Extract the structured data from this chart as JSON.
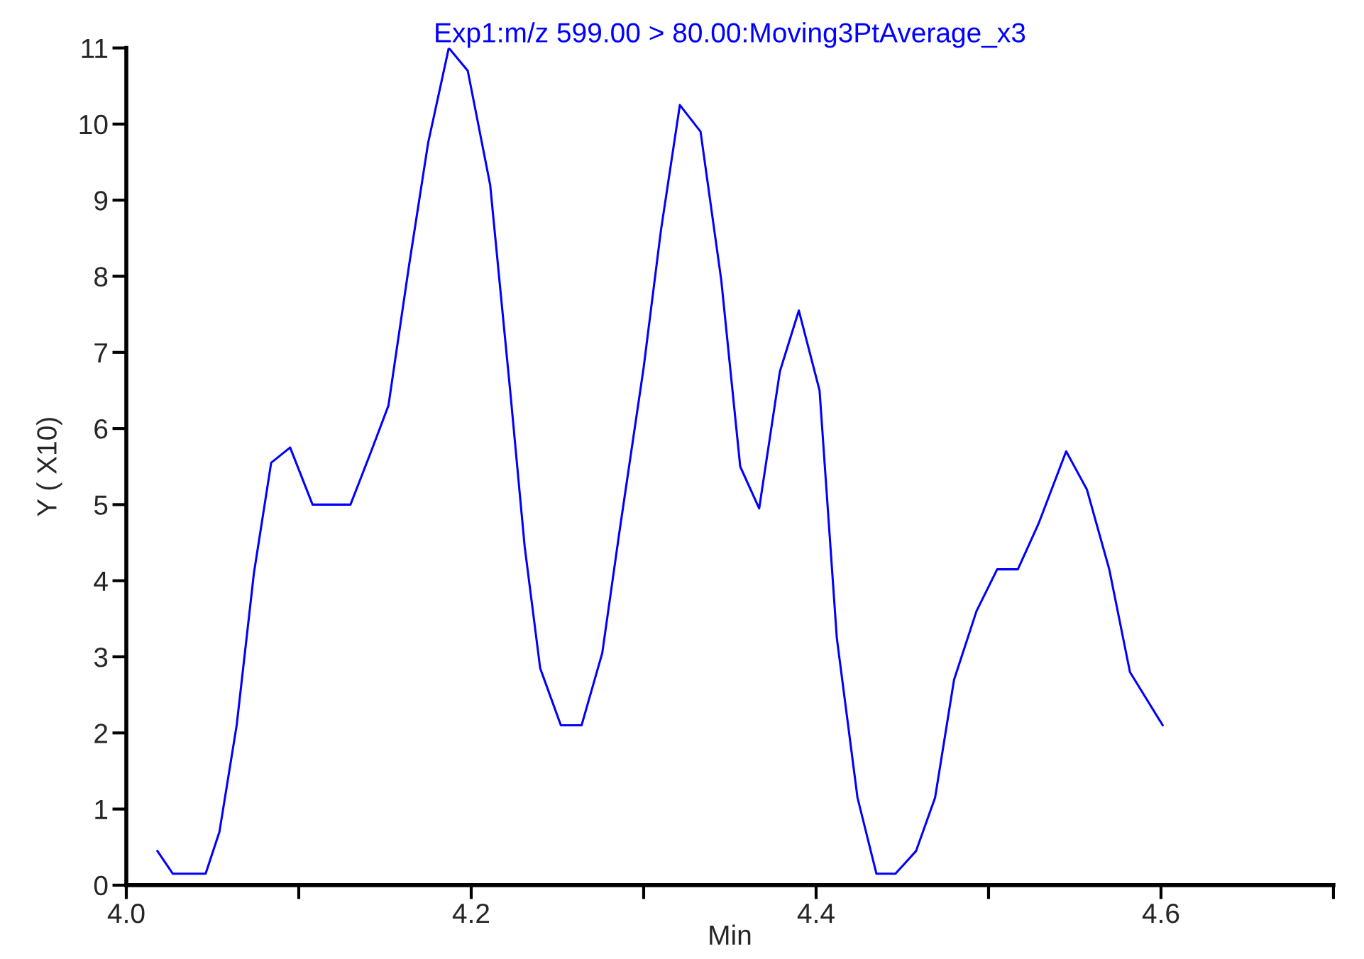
{
  "chart_data": {
    "type": "line",
    "title": "Exp1:m/z 599.00 > 80.00:Moving3PtAverage_x3",
    "xlabel": "Min",
    "ylabel": "Y ( X10)",
    "x": [
      4.018,
      4.027,
      4.046,
      4.054,
      4.064,
      4.074,
      4.084,
      4.095,
      4.108,
      4.13,
      4.142,
      4.152,
      4.164,
      4.175,
      4.187,
      4.198,
      4.211,
      4.223,
      4.231,
      4.24,
      4.252,
      4.264,
      4.276,
      4.286,
      4.3,
      4.31,
      4.321,
      4.333,
      4.345,
      4.356,
      4.367,
      4.379,
      4.39,
      4.402,
      4.412,
      4.424,
      4.435,
      4.446,
      4.458,
      4.469,
      4.48,
      4.493,
      4.505,
      4.517,
      4.529,
      4.545,
      4.557,
      4.57,
      4.582,
      4.601
    ],
    "series": [
      {
        "color": "#0000ff",
        "values": [
          0.45,
          0.15,
          0.15,
          0.7,
          2.1,
          4.1,
          5.55,
          5.75,
          5.0,
          5.0,
          5.7,
          6.3,
          8.15,
          9.75,
          11.0,
          10.7,
          9.2,
          6.4,
          4.45,
          2.85,
          2.1,
          2.1,
          3.05,
          4.65,
          6.8,
          8.6,
          10.25,
          9.9,
          7.95,
          5.5,
          4.95,
          6.75,
          7.55,
          6.5,
          3.25,
          1.15,
          0.15,
          0.15,
          0.45,
          1.15,
          2.7,
          3.6,
          4.15,
          4.15,
          4.75,
          5.7,
          5.2,
          4.15,
          2.8,
          2.1
        ]
      }
    ],
    "xlim": [
      4.0,
      4.7
    ],
    "xticks": [
      {
        "value": 4.0,
        "label": "4.0"
      },
      4.2,
      4.4,
      4.6,
      {
        "value": 4.1,
        "label": null
      },
      {
        "value": 4.3,
        "label": null
      },
      {
        "value": 4.5,
        "label": null
      },
      {
        "value": 4.7,
        "label": null
      }
    ],
    "ylim": [
      0,
      11
    ],
    "yticks": [
      0,
      1,
      2,
      3,
      4,
      5,
      6,
      7,
      8,
      9,
      10,
      11
    ],
    "grid": false,
    "legend": false,
    "marker": "none",
    "line_style": "solid"
  }
}
